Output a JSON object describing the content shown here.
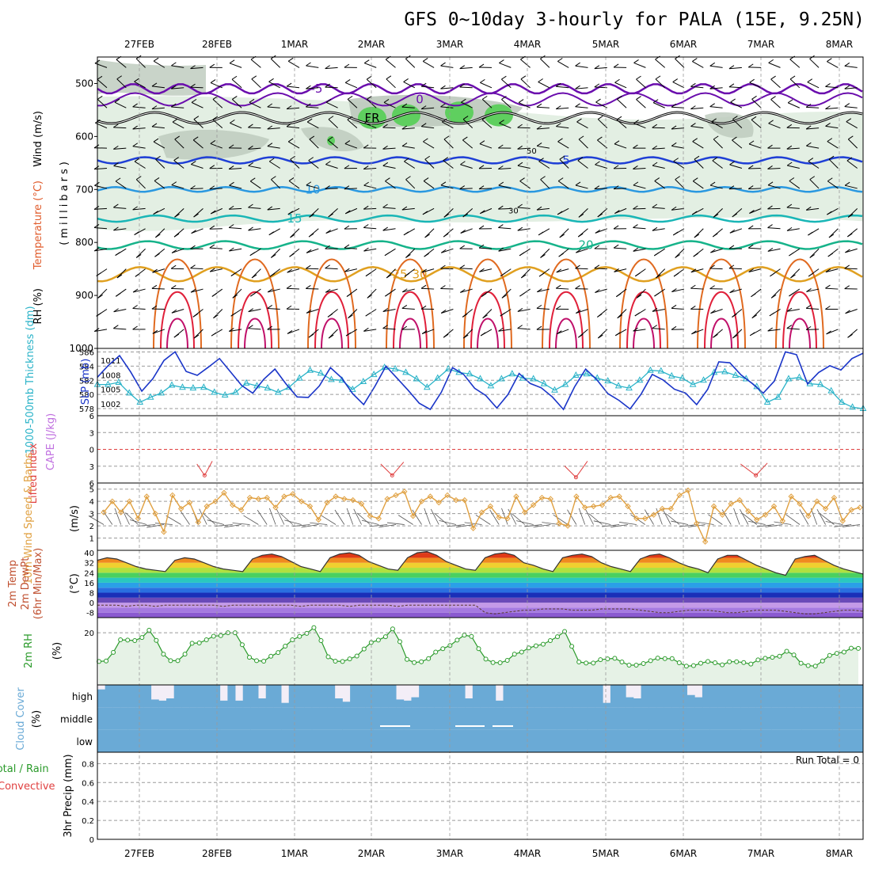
{
  "title": "GFS 0~10day 3-hourly for PALA (15E, 9.25N)",
  "dates": [
    "27FEB",
    "28FEB",
    "1MAR",
    "2MAR",
    "3MAR",
    "4MAR",
    "5MAR",
    "6MAR",
    "7MAR",
    "8MAR"
  ],
  "colors": {
    "grid": "#9a9a9a",
    "temp_contours": [
      "#6a0dad",
      "#1f3fd6",
      "#2a98e0",
      "#19b6b6",
      "#16b38a",
      "#e0a020",
      "#e06a20",
      "#e0203a",
      "#c0106a"
    ],
    "rh_light": "#e3efe3",
    "rh_mid": "#bcc9bc",
    "rh_high": "#5fcf5f",
    "thickness": "#2ab3c8",
    "slp": "#1a35c8",
    "wind10m": "#e0a040",
    "rh2m": "#2a9a2a",
    "rh2m_fill": "#e6f2e6",
    "cloud": "#6aaad6",
    "cloud_bg": "#f3eef7",
    "lifted": "#e04040",
    "cape": "#c070e0"
  },
  "chart_data": [
    {
      "id": "upper_air",
      "type": "contour",
      "ylabel": "(millibars)",
      "side_labels": [
        "Wind (m/s)",
        "Temperature (°C)",
        "RH (%)"
      ],
      "yticks": [
        500,
        600,
        700,
        800,
        900,
        1000
      ],
      "ylim": [
        450,
        1000
      ],
      "isotherms": [
        {
          "label": "-5",
          "level": 510
        },
        {
          "label": "0",
          "level": 530
        },
        {
          "label": "FR",
          "level": 565
        },
        {
          "label": "5",
          "level": 645
        },
        {
          "label": "10",
          "level": 700
        },
        {
          "label": "15",
          "level": 755
        },
        {
          "label": "20",
          "level": 805
        },
        {
          "label": "25",
          "level": 860
        },
        {
          "label": "30",
          "level": 860
        }
      ],
      "rh_labels": [
        "30",
        "50"
      ]
    },
    {
      "id": "thickness_slp",
      "type": "line",
      "left_label": "1000-500mb Thickness (dm)",
      "right_label": "SLP (mb)",
      "left_ticks": [
        578,
        580,
        582,
        584,
        586
      ],
      "right_ticks": [
        1002,
        1005,
        1008,
        1011
      ],
      "series": [
        {
          "name": "1000-500mb Thickness (dm)",
          "marker": "triangle",
          "values": [
            581.4,
            581.4,
            581.7,
            580.2,
            578.9,
            579.6,
            580.2,
            581.3,
            581.0,
            580.9,
            581.0,
            580.3,
            579.9,
            580.3,
            581.6,
            581.2,
            580.9,
            580.3,
            581.0,
            582.3,
            583.4,
            583.0,
            582.1,
            582.0,
            580.7,
            581.8,
            582.8,
            583.8,
            583.6,
            583.1,
            582.2,
            581.0,
            582.3,
            583.6,
            583.1,
            582.9,
            582.2,
            581.2,
            582.2,
            582.9,
            582.3,
            582.2,
            581.5,
            580.6,
            581.4,
            582.7,
            582.9,
            582.3,
            581.9,
            581.2,
            580.9,
            582.0,
            583.4,
            583.3,
            582.6,
            582.3,
            581.4,
            582.0,
            583.1,
            583.2,
            582.7,
            582.2,
            581.1,
            578.9,
            579.6,
            582.2,
            582.4,
            581.5,
            581.4,
            580.5,
            578.9,
            578.2,
            578.0
          ]
        },
        {
          "name": "SLP (mb)",
          "values": [
            1007.5,
            1010.0,
            1012.0,
            1008.6,
            1004.6,
            1007.2,
            1011.0,
            1012.8,
            1008.7,
            1007.9,
            1009.6,
            1011.4,
            1008.6,
            1005.8,
            1004.2,
            1007.1,
            1009.2,
            1006.1,
            1003.4,
            1003.3,
            1005.7,
            1009.5,
            1007.4,
            1004.1,
            1001.8,
            1005.6,
            1009.8,
            1007.3,
            1004.8,
            1002.1,
            1000.8,
            1004.4,
            1009.5,
            1008.1,
            1005.2,
            1003.7,
            1001.1,
            1003.9,
            1008.3,
            1006.2,
            1005.3,
            1003.4,
            1000.8,
            1005.5,
            1009.2,
            1007.0,
            1004.1,
            1002.7,
            1000.9,
            1004.0,
            1008.1,
            1006.9,
            1005.0,
            1004.2,
            1001.8,
            1005.0,
            1010.7,
            1010.5,
            1008.0,
            1006.2,
            1004.2,
            1006.7,
            1012.8,
            1012.2,
            1006.1,
            1008.5,
            1009.9,
            1009.0,
            1011.4,
            1012.5
          ]
        }
      ]
    },
    {
      "id": "instability",
      "type": "line",
      "left_label": "Lifted Index",
      "right_label": "CAPE (J/kg)",
      "left_ticks": [
        6,
        3,
        0,
        -3,
        -6
      ],
      "ylim": [
        6,
        -6
      ],
      "series": [
        {
          "name": "Lifted Index",
          "points": [
            [
              16.2,
              5.2
            ],
            [
              16.4,
              4.0
            ],
            [
              16.6,
              5.5
            ],
            [
              21.0,
              5.2
            ],
            [
              21.3,
              4.0
            ],
            [
              21.6,
              5.4
            ],
            [
              25.8,
              5.0
            ],
            [
              26.1,
              3.8
            ],
            [
              26.4,
              5.5
            ],
            [
              30.4,
              5.2
            ],
            [
              30.8,
              4.0
            ],
            [
              31.1,
              5.3
            ]
          ]
        }
      ]
    },
    {
      "id": "wind10m",
      "type": "line",
      "left_label": "10m Wind Speed & Barbs",
      "right_label": "(m/s)",
      "ytick_labels": [
        "1",
        "2",
        "3",
        "4",
        "5"
      ],
      "ylim": [
        0,
        5.5
      ],
      "series": [
        {
          "name": "10m Wind Speed",
          "values": [
            3.1,
            4.0,
            3.1,
            4.0,
            2.6,
            4.4,
            3.0,
            1.5,
            4.5,
            3.4,
            3.9,
            2.3,
            3.6,
            4.0,
            4.7,
            3.7,
            3.3,
            4.3,
            4.2,
            4.3,
            3.5,
            4.4,
            4.6,
            4.0,
            3.6,
            2.5,
            3.9,
            4.4,
            4.2,
            4.1,
            3.8,
            2.8,
            2.6,
            4.2,
            4.5,
            4.8,
            2.8,
            4.0,
            4.4,
            3.9,
            4.5,
            4.1,
            4.1,
            1.8,
            3.1,
            3.6,
            2.7,
            2.6,
            4.4,
            3.1,
            3.7,
            4.3,
            4.2,
            2.2,
            2.0,
            4.4,
            3.5,
            3.6,
            3.7,
            4.3,
            4.4,
            3.6,
            2.6,
            2.6,
            2.9,
            3.4,
            3.4,
            4.5,
            4.9,
            2.2,
            0.7,
            3.6,
            2.9,
            3.8,
            4.1,
            3.2,
            2.5,
            2.9,
            3.6,
            2.4,
            4.4,
            3.8,
            2.8,
            4.0,
            3.4,
            4.3,
            2.4,
            3.3,
            3.5
          ]
        }
      ]
    },
    {
      "id": "temp2m",
      "type": "area",
      "left_label": "2m Temp 2m DewPt (6hr Min/Max)",
      "right_label": "(°C)",
      "yticks": [
        40,
        32,
        24,
        16,
        8,
        0,
        -8
      ],
      "ylim": [
        -12,
        42
      ],
      "series": [
        {
          "name": "2m Temp",
          "values": [
            34,
            36,
            35,
            32,
            29,
            27,
            26,
            25,
            34,
            36,
            35,
            32,
            29,
            27,
            26,
            25,
            35,
            38,
            39,
            37,
            33,
            29,
            27,
            25,
            36,
            39,
            40,
            38,
            33,
            30,
            27,
            26,
            36,
            40,
            41,
            38,
            33,
            30,
            27,
            26,
            36,
            39,
            40,
            38,
            32,
            30,
            27,
            25,
            36,
            38,
            39,
            37,
            32,
            29,
            27,
            25,
            35,
            38,
            39,
            36,
            32,
            29,
            27,
            24,
            35,
            38,
            38,
            34,
            30,
            27,
            24,
            22,
            35,
            37,
            38,
            34,
            30,
            27,
            25,
            23
          ]
        },
        {
          "name": "2m DewPt",
          "values": [
            -2,
            -2,
            -2,
            -3,
            -2,
            -2,
            -3,
            -2,
            -2,
            -2,
            -2,
            -2,
            -2,
            -3,
            -2,
            -2,
            -2,
            -2,
            -2,
            -2,
            -2,
            -3,
            -2,
            -2,
            -2,
            -2,
            -3,
            -2,
            -2,
            -2,
            -2,
            -3,
            -2,
            -2,
            -2,
            -2,
            -2,
            -2,
            -2,
            -2,
            -8,
            -9,
            -8,
            -7,
            -6,
            -6,
            -5,
            -5,
            -5,
            -6,
            -6,
            -6,
            -5,
            -5,
            -5,
            -5,
            -6,
            -7,
            -8,
            -8,
            -7,
            -6,
            -6,
            -6,
            -7,
            -8,
            -8,
            -7,
            -6,
            -6,
            -6,
            -7,
            -8,
            -9,
            -9,
            -8,
            -7,
            -6,
            -6,
            -7
          ]
        }
      ]
    },
    {
      "id": "rh2m",
      "type": "line",
      "left_label": "2m RH",
      "right_label": "(%)",
      "yticks": [
        20
      ],
      "ylim": [
        0,
        24
      ],
      "series": [
        {
          "name": "2m RH",
          "values": [
            9.0,
            9.2,
            12.5,
            17.3,
            17.2,
            17.0,
            18.2,
            21.0,
            17.1,
            11.8,
            9.3,
            9.3,
            11.8,
            16.0,
            16.1,
            17.3,
            18.7,
            18.9,
            20.0,
            20.0,
            15.4,
            10.6,
            9.3,
            9.1,
            11.0,
            12.4,
            14.9,
            17.3,
            18.6,
            19.8,
            22.0,
            17.0,
            10.8,
            9.1,
            9.0,
            10.0,
            11.1,
            13.8,
            16.3,
            17.2,
            18.5,
            21.5,
            16.6,
            9.8,
            8.6,
            8.9,
            10.1,
            12.6,
            13.9,
            15.1,
            17.2,
            19.1,
            18.6,
            13.9,
            9.9,
            8.6,
            8.5,
            9.4,
            11.8,
            12.6,
            14.2,
            15.0,
            15.6,
            17.0,
            18.5,
            20.5,
            14.8,
            8.8,
            8.4,
            8.4,
            9.7,
            10.0,
            10.2,
            8.8,
            7.6,
            7.6,
            8.2,
            9.3,
            10.3,
            10.1,
            10.1,
            8.5,
            7.2,
            7.4,
            8.3,
            9.0,
            8.5,
            7.7,
            8.9,
            8.9,
            8.6,
            8.0,
            9.6,
            10.2,
            10.6,
            11.0,
            12.9,
            11.5,
            8.3,
            7.4,
            7.2,
            9.2,
            11.3,
            12.1,
            12.6,
            14.1,
            14.0
          ]
        }
      ]
    },
    {
      "id": "cloud_cover",
      "type": "area",
      "left_label": "Cloud Cover",
      "right_label": "(%)",
      "levels": [
        "high",
        "middle",
        "low"
      ],
      "series": [
        {
          "name": "high",
          "values": [
            80,
            100,
            100,
            100,
            100,
            100,
            100,
            35,
            30,
            40,
            100,
            100,
            100,
            100,
            100,
            100,
            30,
            100,
            30,
            100,
            100,
            40,
            100,
            100,
            20,
            100,
            100,
            100,
            100,
            100,
            100,
            40,
            25,
            100,
            100,
            100,
            100,
            100,
            100,
            35,
            30,
            45,
            100,
            100,
            100,
            100,
            100,
            100,
            40,
            100,
            100,
            100,
            30,
            100,
            100,
            100,
            100,
            100,
            100,
            100,
            100,
            100,
            100,
            100,
            100,
            100,
            20,
            100,
            100,
            45,
            40,
            100,
            100,
            100,
            100,
            100,
            100,
            55,
            45,
            100,
            100,
            100,
            100,
            100,
            100,
            100,
            100,
            100,
            100,
            100,
            100,
            100,
            100,
            100,
            100,
            100,
            100,
            100,
            100,
            100
          ]
        },
        {
          "name": "middle",
          "values": [
            100,
            100,
            100,
            100,
            100,
            100,
            100,
            100,
            100,
            100,
            100,
            100,
            100,
            100,
            100,
            100,
            100,
            100,
            100,
            100,
            100,
            100,
            100,
            100,
            100
          ]
        },
        {
          "name": "low",
          "values": [
            100,
            100,
            100,
            100,
            100,
            100,
            100,
            100,
            100,
            100,
            100,
            100,
            100,
            100,
            100,
            100,
            100,
            100,
            100,
            100,
            100,
            100,
            100,
            100,
            100
          ]
        }
      ]
    },
    {
      "id": "precip",
      "type": "bar",
      "left_label": "Total / Rain Convective",
      "right_label": "3hr Precip (mm)",
      "yticks": [
        0,
        0.2,
        0.4,
        0.6,
        0.8
      ],
      "ylim": [
        0,
        0.92
      ],
      "annotation": "Run Total = 0",
      "series": [
        {
          "name": "Total / Rain",
          "values": [
            0,
            0,
            0,
            0,
            0,
            0,
            0,
            0,
            0,
            0,
            0,
            0,
            0,
            0,
            0,
            0,
            0,
            0,
            0,
            0,
            0,
            0,
            0,
            0,
            0,
            0,
            0,
            0,
            0,
            0,
            0,
            0,
            0,
            0,
            0,
            0,
            0,
            0,
            0,
            0,
            0,
            0,
            0,
            0,
            0,
            0,
            0,
            0,
            0,
            0,
            0,
            0,
            0,
            0,
            0,
            0,
            0,
            0,
            0,
            0,
            0,
            0,
            0,
            0,
            0,
            0,
            0,
            0,
            0,
            0,
            0,
            0,
            0,
            0,
            0,
            0,
            0,
            0,
            0,
            0
          ]
        },
        {
          "name": "Convective",
          "values": [
            0,
            0,
            0,
            0,
            0,
            0,
            0,
            0,
            0,
            0,
            0,
            0,
            0,
            0,
            0,
            0,
            0,
            0,
            0,
            0,
            0,
            0,
            0,
            0,
            0,
            0,
            0,
            0,
            0,
            0,
            0,
            0,
            0,
            0,
            0,
            0,
            0,
            0,
            0,
            0,
            0,
            0,
            0,
            0,
            0,
            0,
            0,
            0,
            0,
            0,
            0,
            0,
            0,
            0,
            0,
            0,
            0,
            0,
            0,
            0,
            0,
            0,
            0,
            0,
            0,
            0,
            0,
            0,
            0,
            0,
            0,
            0,
            0,
            0,
            0,
            0,
            0,
            0,
            0,
            0,
            0,
            0,
            0,
            0,
            0,
            0,
            0,
            0,
            0,
            0
          ]
        }
      ]
    }
  ]
}
